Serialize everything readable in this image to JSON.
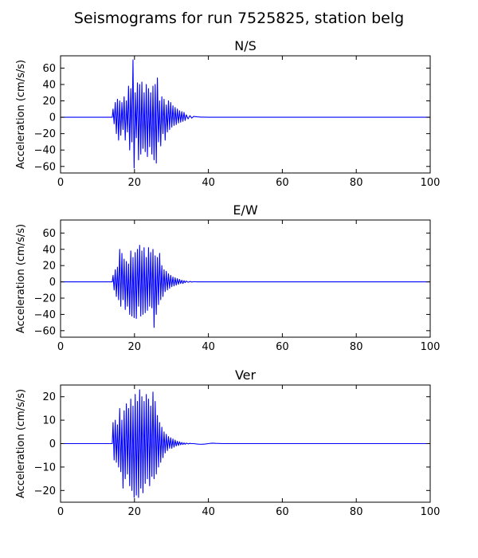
{
  "figure": {
    "title": "Seismograms for run 7525825, station belg"
  },
  "chart_data": [
    {
      "type": "line",
      "title": "N/S",
      "xlabel": "",
      "ylabel": "Acceleration (cm/s/s)",
      "xlim": [
        0,
        100
      ],
      "ylim": [
        -68,
        75
      ],
      "xticks": [
        0,
        20,
        40,
        60,
        80,
        100
      ],
      "yticks": [
        -60,
        -40,
        -20,
        0,
        20,
        40,
        60
      ],
      "grid": false,
      "series": [
        {
          "color": "#0000ff",
          "x": [
            0,
            14,
            14.2,
            14.5,
            14.8,
            15.1,
            15.4,
            15.7,
            16,
            16.3,
            16.6,
            16.9,
            17.2,
            17.5,
            17.8,
            18.1,
            18.4,
            18.7,
            19,
            19.3,
            19.6,
            19.9,
            20.2,
            20.5,
            20.8,
            21.1,
            21.4,
            21.7,
            22,
            22.3,
            22.6,
            22.9,
            23.2,
            23.5,
            23.8,
            24.1,
            24.4,
            24.7,
            25,
            25.3,
            25.6,
            25.9,
            26.2,
            26.5,
            26.8,
            27.1,
            27.4,
            27.7,
            28,
            28.3,
            28.6,
            28.9,
            29.2,
            29.5,
            29.8,
            30.1,
            30.4,
            30.7,
            31,
            31.3,
            31.6,
            31.9,
            32.2,
            32.5,
            32.8,
            33.1,
            33.4,
            33.7,
            34,
            34.5,
            35,
            35.5,
            36,
            37,
            38,
            40,
            100
          ],
          "y": [
            0,
            0,
            10,
            -8,
            18,
            -20,
            22,
            -28,
            20,
            -22,
            18,
            -15,
            25,
            -28,
            20,
            -18,
            38,
            -40,
            35,
            -30,
            70,
            -62,
            30,
            -25,
            42,
            -52,
            40,
            -45,
            43,
            -38,
            30,
            -42,
            40,
            -48,
            35,
            -36,
            30,
            -45,
            38,
            -52,
            40,
            -56,
            48,
            -30,
            20,
            -35,
            25,
            -20,
            22,
            -28,
            15,
            -18,
            20,
            -15,
            18,
            -12,
            14,
            -10,
            12,
            -9,
            10,
            -7,
            8,
            -6,
            7,
            -5,
            6,
            -4,
            3,
            -2,
            2,
            -1,
            1,
            0.5,
            0.2,
            0,
            0
          ]
        }
      ]
    },
    {
      "type": "line",
      "title": "E/W",
      "xlabel": "",
      "ylabel": "Acceleration (cm/s/s)",
      "xlim": [
        0,
        100
      ],
      "ylim": [
        -68,
        76
      ],
      "xticks": [
        0,
        20,
        40,
        60,
        80,
        100
      ],
      "yticks": [
        -60,
        -40,
        -20,
        0,
        20,
        40,
        60
      ],
      "grid": false,
      "series": [
        {
          "color": "#0000ff",
          "x": [
            0,
            14,
            14.2,
            14.5,
            14.8,
            15.1,
            15.4,
            15.7,
            16,
            16.3,
            16.6,
            16.9,
            17.2,
            17.5,
            17.8,
            18.1,
            18.4,
            18.7,
            19,
            19.3,
            19.6,
            19.9,
            20.2,
            20.5,
            20.8,
            21.1,
            21.4,
            21.7,
            22,
            22.3,
            22.6,
            22.9,
            23.2,
            23.5,
            23.8,
            24.1,
            24.4,
            24.7,
            25,
            25.3,
            25.6,
            25.9,
            26.2,
            26.5,
            26.8,
            27.1,
            27.4,
            27.7,
            28,
            28.3,
            28.6,
            28.9,
            29.2,
            29.5,
            29.8,
            30.1,
            30.4,
            30.7,
            31,
            31.3,
            31.6,
            31.9,
            32.2,
            32.5,
            32.8,
            33.1,
            33.4,
            33.7,
            34,
            34.5,
            35,
            35.5,
            36,
            37,
            38,
            40,
            100
          ],
          "y": [
            0,
            0,
            8,
            -10,
            15,
            -18,
            18,
            -22,
            40,
            -30,
            35,
            -22,
            28,
            -34,
            25,
            -30,
            22,
            -40,
            38,
            -42,
            30,
            -44,
            36,
            -45,
            40,
            -30,
            45,
            -42,
            38,
            -40,
            42,
            -38,
            30,
            -35,
            42,
            -30,
            36,
            -32,
            40,
            -56,
            32,
            -40,
            30,
            -28,
            35,
            -22,
            20,
            -18,
            15,
            -12,
            13,
            -10,
            10,
            -8,
            8,
            -6,
            6,
            -5,
            5,
            -4,
            4,
            -3,
            3,
            -2,
            2,
            -2,
            1.5,
            -1,
            1,
            -0.5,
            0.5,
            -0.2,
            0.2,
            0,
            0,
            0,
            0
          ]
        }
      ]
    },
    {
      "type": "line",
      "title": "Ver",
      "xlabel": "",
      "ylabel": "Acceleration (cm/s/s)",
      "xlim": [
        0,
        100
      ],
      "ylim": [
        -25,
        25
      ],
      "xticks": [
        0,
        20,
        40,
        60,
        80,
        100
      ],
      "yticks": [
        -20,
        -10,
        0,
        10,
        20
      ],
      "grid": false,
      "series": [
        {
          "color": "#0000ff",
          "x": [
            0,
            14,
            14.2,
            14.5,
            14.8,
            15.1,
            15.4,
            15.7,
            16,
            16.3,
            16.6,
            16.9,
            17.2,
            17.5,
            17.8,
            18.1,
            18.4,
            18.7,
            19,
            19.3,
            19.6,
            19.9,
            20.2,
            20.5,
            20.8,
            21.1,
            21.4,
            21.7,
            22,
            22.3,
            22.6,
            22.9,
            23.2,
            23.5,
            23.8,
            24.1,
            24.4,
            24.7,
            25,
            25.3,
            25.6,
            25.9,
            26.2,
            26.5,
            26.8,
            27.1,
            27.4,
            27.7,
            28,
            28.3,
            28.6,
            28.9,
            29.2,
            29.5,
            29.8,
            30.1,
            30.4,
            30.7,
            31,
            31.3,
            31.6,
            31.9,
            32.2,
            32.5,
            32.8,
            33.1,
            33.4,
            33.7,
            34,
            34.5,
            35,
            35.5,
            36,
            37,
            38,
            39,
            40,
            41,
            42,
            44,
            100
          ],
          "y": [
            0,
            0,
            9,
            -7,
            10,
            -8,
            8,
            -10,
            15,
            -12,
            10,
            -19,
            14,
            -15,
            17,
            -13,
            15,
            -18,
            19,
            -20,
            16,
            -23,
            21,
            -22,
            18,
            -23,
            23,
            -19,
            20,
            -21,
            18,
            -17,
            21,
            -15,
            19,
            -18,
            16,
            -14,
            22,
            -15,
            18,
            -13,
            12,
            -10,
            9,
            -8,
            7,
            -6,
            5,
            -4,
            4,
            -3,
            3,
            -2,
            2.5,
            -2,
            2,
            -1.5,
            1.5,
            -1,
            1,
            -0.8,
            0.8,
            -0.5,
            0.5,
            -0.4,
            0.3,
            -0.3,
            0.2,
            -0.1,
            0.1,
            0,
            0,
            -0.2,
            -0.3,
            -0.2,
            0,
            0.2,
            0.1,
            0,
            0
          ]
        }
      ]
    }
  ]
}
